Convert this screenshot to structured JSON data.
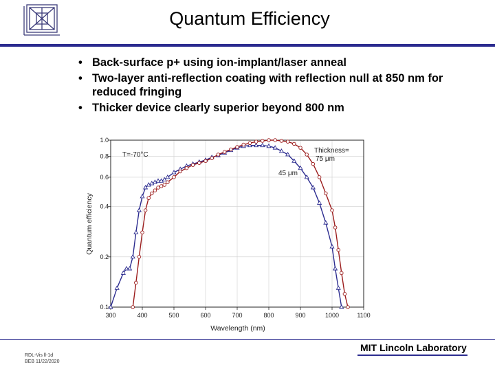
{
  "slide": {
    "title": "Quantum Efficiency",
    "bullets": [
      "Back-surface p+ using ion-implant/laser anneal",
      "Two-layer anti-reflection coating with reflection null at 850 nm for reduced fringing",
      "Thicker device clearly superior beyond 800 nm"
    ],
    "footer_left_line1": "RDL-Vis ll-1d",
    "footer_left_line2": "BEB 11/22/2020",
    "footer_right": "MIT Lincoln Laboratory",
    "accent_color": "#2b2b8f",
    "logo_icon": "mit-ll-logo-icon"
  },
  "chart_data": {
    "type": "line",
    "title": "",
    "xlabel": "Wavelength (nm)",
    "ylabel": "Quantum efficiency",
    "xlim": [
      300,
      1100
    ],
    "ylim": [
      0.1,
      1.0
    ],
    "yscale": "log",
    "x_ticks": [
      300,
      400,
      500,
      600,
      700,
      800,
      900,
      1000,
      1100
    ],
    "y_ticks": [
      0.1,
      0.2,
      0.4,
      0.6,
      0.8,
      1.0
    ],
    "y_tick_labels": [
      "0.1",
      "0.2",
      "0.4",
      "0.6",
      "0.8",
      "1.0"
    ],
    "grid": true,
    "annotations": {
      "temperature": "T=-70°C",
      "thickness_label": "Thickness=",
      "thick_label": "75 μm",
      "thin_label": "45 μm"
    },
    "series": [
      {
        "name": "45 μm",
        "color": "#2b2b8f",
        "marker": "triangle",
        "x": [
          300,
          320,
          340,
          350,
          360,
          370,
          380,
          390,
          400,
          410,
          420,
          430,
          440,
          450,
          460,
          470,
          480,
          500,
          520,
          540,
          560,
          580,
          600,
          620,
          640,
          660,
          680,
          700,
          720,
          740,
          760,
          780,
          800,
          820,
          840,
          860,
          880,
          900,
          920,
          940,
          960,
          980,
          1000,
          1010,
          1020,
          1030
        ],
        "y": [
          0.1,
          0.13,
          0.16,
          0.17,
          0.17,
          0.2,
          0.28,
          0.38,
          0.46,
          0.52,
          0.54,
          0.55,
          0.56,
          0.57,
          0.57,
          0.58,
          0.6,
          0.64,
          0.67,
          0.7,
          0.72,
          0.74,
          0.76,
          0.79,
          0.81,
          0.84,
          0.87,
          0.9,
          0.92,
          0.93,
          0.93,
          0.93,
          0.92,
          0.9,
          0.86,
          0.82,
          0.75,
          0.68,
          0.6,
          0.52,
          0.42,
          0.32,
          0.23,
          0.17,
          0.13,
          0.1
        ]
      },
      {
        "name": "75 μm",
        "color": "#9b1c1c",
        "marker": "circle",
        "x": [
          370,
          380,
          390,
          400,
          410,
          420,
          430,
          440,
          450,
          460,
          470,
          480,
          500,
          520,
          540,
          560,
          580,
          600,
          620,
          640,
          660,
          680,
          700,
          720,
          740,
          760,
          780,
          800,
          820,
          840,
          860,
          880,
          900,
          920,
          940,
          960,
          980,
          1000,
          1010,
          1020,
          1030,
          1040,
          1050
        ],
        "y": [
          0.1,
          0.14,
          0.2,
          0.28,
          0.38,
          0.45,
          0.48,
          0.5,
          0.52,
          0.53,
          0.54,
          0.56,
          0.6,
          0.65,
          0.68,
          0.71,
          0.73,
          0.75,
          0.78,
          0.82,
          0.85,
          0.88,
          0.91,
          0.94,
          0.96,
          0.98,
          0.99,
          1.0,
          1.0,
          0.99,
          0.98,
          0.95,
          0.9,
          0.82,
          0.72,
          0.6,
          0.48,
          0.38,
          0.3,
          0.22,
          0.16,
          0.12,
          0.1
        ]
      }
    ]
  }
}
